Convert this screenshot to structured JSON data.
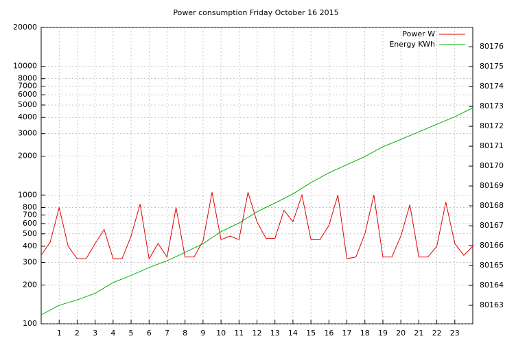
{
  "chart_data": {
    "type": "line",
    "title": "Power consumption Friday October 16 2015",
    "xlim": [
      0,
      24
    ],
    "xticks": [
      1,
      2,
      3,
      4,
      5,
      6,
      7,
      8,
      9,
      10,
      11,
      12,
      13,
      14,
      15,
      16,
      17,
      18,
      19,
      20,
      21,
      22,
      23
    ],
    "ylim": [
      100,
      20000
    ],
    "yticks": [
      100,
      200,
      300,
      400,
      500,
      600,
      700,
      800,
      1000,
      2000,
      3000,
      4000,
      5000,
      6000,
      7000,
      8000,
      10000,
      20000
    ],
    "y2lim": [
      80162.07,
      80176.97
    ],
    "y2ticks": [
      80163,
      80164,
      80165,
      80166,
      80167,
      80168,
      80169,
      80170,
      80171,
      80172,
      80173,
      80174,
      80175,
      80176
    ],
    "log_y": true,
    "grid": true,
    "legend": "top-right",
    "series": [
      {
        "name": "Power W",
        "color": "#e00000",
        "x": [
          0,
          0.5,
          1,
          1.5,
          2,
          2.5,
          3,
          3.5,
          4,
          4.5,
          5,
          5.5,
          6,
          6.5,
          7,
          7.5,
          8,
          8.5,
          9,
          9.5,
          10,
          10.5,
          11,
          11.5,
          12,
          12.5,
          13,
          13.5,
          14,
          14.5,
          15,
          15.5,
          16,
          16.5,
          17,
          17.5,
          18,
          18.5,
          19,
          19.5,
          20,
          20.5,
          21,
          21.5,
          22,
          22.5,
          23,
          23.5,
          24
        ],
        "values": [
          340,
          430,
          800,
          400,
          320,
          320,
          420,
          540,
          320,
          320,
          480,
          850,
          320,
          420,
          330,
          800,
          330,
          330,
          440,
          1050,
          450,
          480,
          450,
          1050,
          620,
          460,
          460,
          760,
          620,
          1000,
          450,
          450,
          580,
          1000,
          320,
          330,
          500,
          1000,
          330,
          330,
          480,
          840,
          330,
          330,
          400,
          880,
          420,
          340,
          400
        ]
      },
      {
        "name": "Energy KWh",
        "color": "#00b000",
        "axis": "y2",
        "x": [
          0,
          1,
          2,
          3,
          4,
          5,
          6,
          7,
          8,
          9,
          10,
          11,
          12,
          13,
          14,
          15,
          16,
          17,
          18,
          19,
          20,
          21,
          22,
          23,
          24
        ],
        "values": [
          80162.52,
          80163.0,
          80163.27,
          80163.6,
          80164.14,
          80164.5,
          80164.9,
          80165.24,
          80165.66,
          80166.1,
          80166.7,
          80167.14,
          80167.7,
          80168.14,
          80168.6,
          80169.17,
          80169.66,
          80170.07,
          80170.48,
          80170.97,
          80171.34,
          80171.72,
          80172.1,
          80172.48,
          80172.93
        ]
      }
    ]
  }
}
